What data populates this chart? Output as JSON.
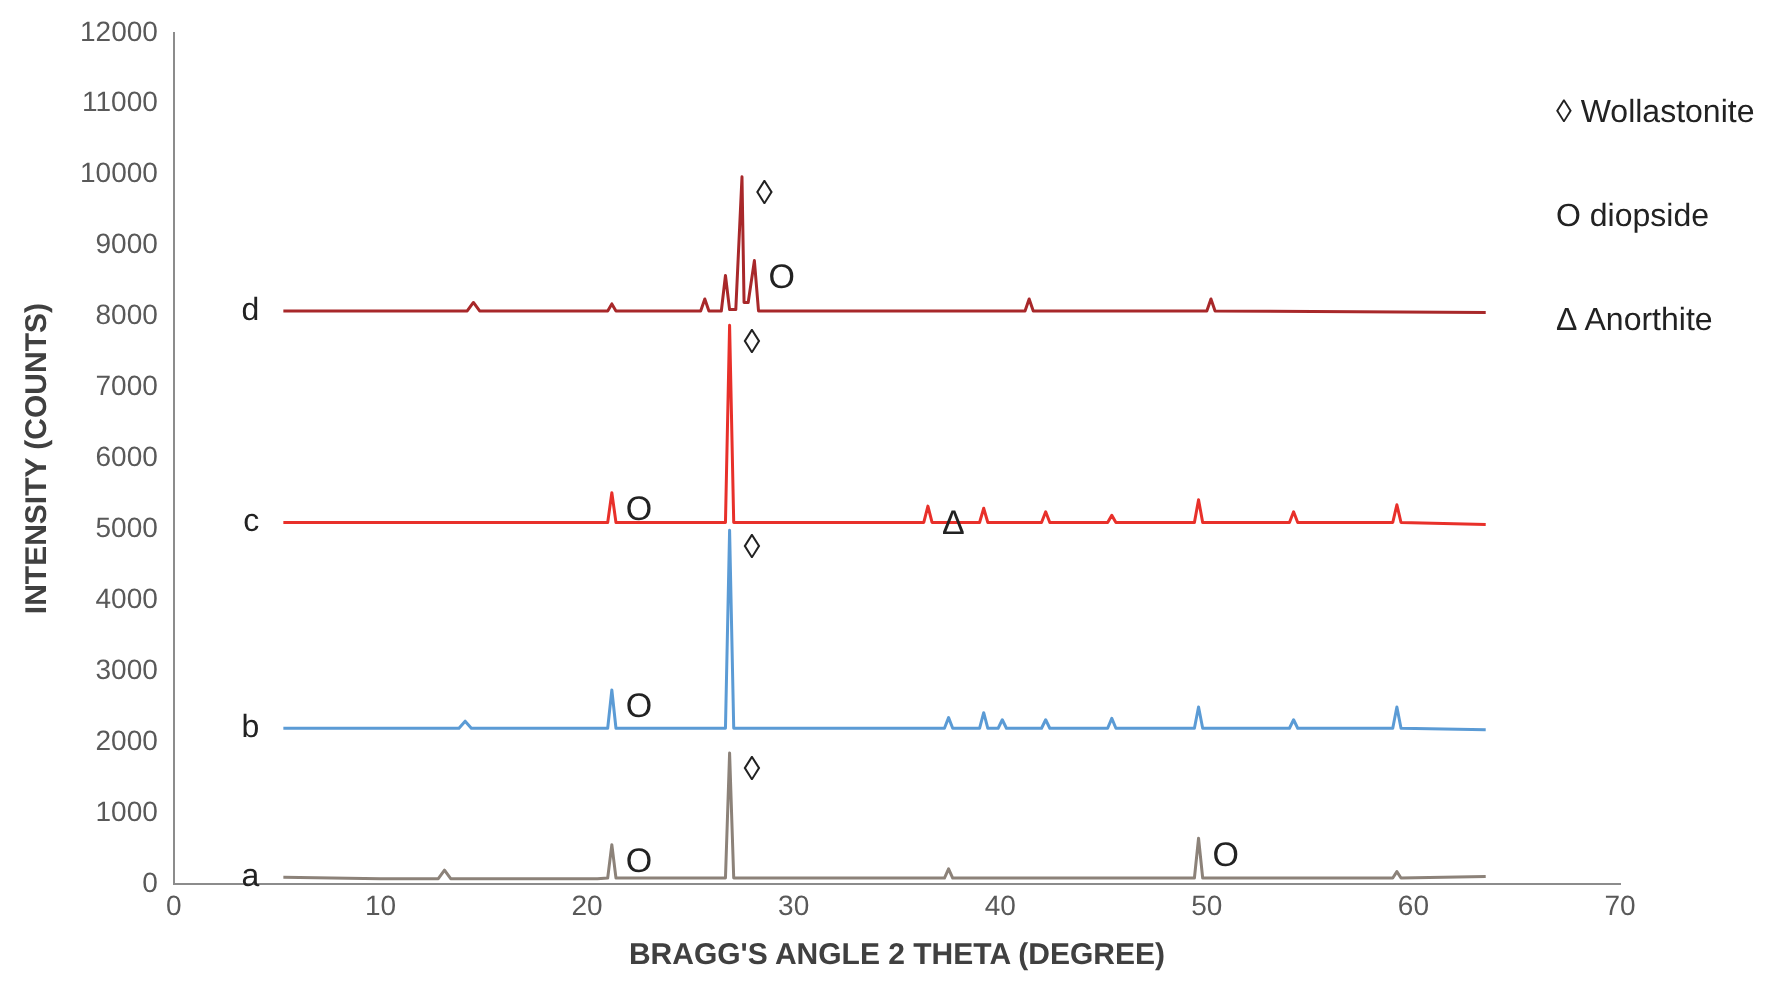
{
  "chart_data": {
    "type": "line",
    "xlabel": "BRAGG'S ANGLE 2 THETA (DEGREE)",
    "ylabel": "INTENSITY (COUNTS)",
    "xlim": [
      0,
      70
    ],
    "xticks": [
      0,
      10,
      20,
      30,
      40,
      50,
      60,
      70
    ],
    "ylim": [
      0,
      12000
    ],
    "yticks": [
      0,
      1000,
      2000,
      3000,
      4000,
      5000,
      6000,
      7000,
      8000,
      9000,
      10000,
      11000,
      12000
    ],
    "grid": false,
    "legend": false,
    "marker": "none",
    "line_style": "solid",
    "series": [
      {
        "name": "a",
        "color": "#8c8279",
        "x": [
          5.3,
          10,
          12.8,
          13.1,
          13.4,
          20.5,
          21.0,
          21.2,
          21.4,
          25,
          26.7,
          26.9,
          27.1,
          37.3,
          37.5,
          37.7,
          49.4,
          49.6,
          49.8,
          59,
          59.2,
          59.4,
          63.5
        ],
        "values": [
          100,
          80,
          80,
          200,
          80,
          80,
          90,
          560,
          90,
          90,
          90,
          1850,
          90,
          90,
          220,
          90,
          90,
          650,
          90,
          90,
          180,
          90,
          110
        ]
      },
      {
        "name": "b",
        "color": "#5b9bd5",
        "x": [
          5.3,
          13.8,
          14.1,
          14.4,
          21.0,
          21.2,
          21.4,
          26.7,
          26.9,
          27.1,
          37.3,
          37.5,
          37.7,
          39,
          39.2,
          39.4,
          39.9,
          40.1,
          40.3,
          42,
          42.2,
          42.4,
          45.2,
          45.4,
          45.6,
          49.4,
          49.6,
          49.8,
          54,
          54.2,
          54.4,
          59,
          59.2,
          59.4,
          63.5
        ],
        "values": [
          2200,
          2200,
          2300,
          2200,
          2200,
          2740,
          2200,
          2200,
          4990,
          2200,
          2200,
          2350,
          2200,
          2200,
          2420,
          2200,
          2200,
          2320,
          2200,
          2200,
          2320,
          2200,
          2200,
          2340,
          2200,
          2200,
          2500,
          2200,
          2200,
          2320,
          2200,
          2200,
          2500,
          2200,
          2180
        ]
      },
      {
        "name": "c",
        "color": "#e8302a",
        "x": [
          5.3,
          14,
          21.0,
          21.2,
          21.4,
          26.7,
          26.9,
          27.1,
          36.3,
          36.5,
          36.7,
          39,
          39.2,
          39.4,
          42,
          42.2,
          42.4,
          45.2,
          45.4,
          45.6,
          49.4,
          49.6,
          49.8,
          54,
          54.2,
          54.4,
          59,
          59.2,
          59.4,
          63.5
        ],
        "values": [
          5100,
          5100,
          5100,
          5520,
          5100,
          5100,
          7880,
          5100,
          5100,
          5330,
          5100,
          5100,
          5300,
          5100,
          5100,
          5250,
          5100,
          5100,
          5200,
          5100,
          5100,
          5420,
          5100,
          5100,
          5250,
          5100,
          5100,
          5350,
          5100,
          5070
        ]
      },
      {
        "name": "d",
        "color": "#a8282a",
        "x": [
          5.3,
          14.2,
          14.5,
          14.8,
          21.0,
          21.2,
          21.4,
          25.5,
          25.7,
          25.9,
          26.5,
          26.7,
          26.9,
          27.2,
          27.5,
          27.6,
          27.8,
          28.1,
          28.3,
          41.2,
          41.4,
          41.6,
          50,
          50.2,
          50.4,
          63.5
        ],
        "values": [
          8080,
          8080,
          8200,
          8080,
          8080,
          8180,
          8080,
          8080,
          8250,
          8080,
          8080,
          8580,
          8100,
          8100,
          9970,
          8200,
          8200,
          8790,
          8080,
          8080,
          8250,
          8080,
          8080,
          8250,
          8080,
          8060
        ]
      }
    ],
    "annotations": [
      "◊ Wollastonite",
      "O diopside",
      "Δ Anorthite",
      {
        "text": "◊",
        "x": 27.5,
        "y": 9970
      },
      {
        "text": "O",
        "x": 28.1,
        "y": 8790
      },
      {
        "text": "◊",
        "x": 26.9,
        "y": 7880
      },
      {
        "text": "O",
        "x": 21.2,
        "y": 5520
      },
      {
        "text": "Δ",
        "x": 36.5,
        "y": 5330
      },
      {
        "text": "◊",
        "x": 26.9,
        "y": 4990
      },
      {
        "text": "O",
        "x": 21.2,
        "y": 2740
      },
      {
        "text": "◊",
        "x": 26.9,
        "y": 1850
      },
      {
        "text": "O",
        "x": 21.2,
        "y": 560
      },
      {
        "text": "O",
        "x": 49.6,
        "y": 650
      }
    ]
  }
}
